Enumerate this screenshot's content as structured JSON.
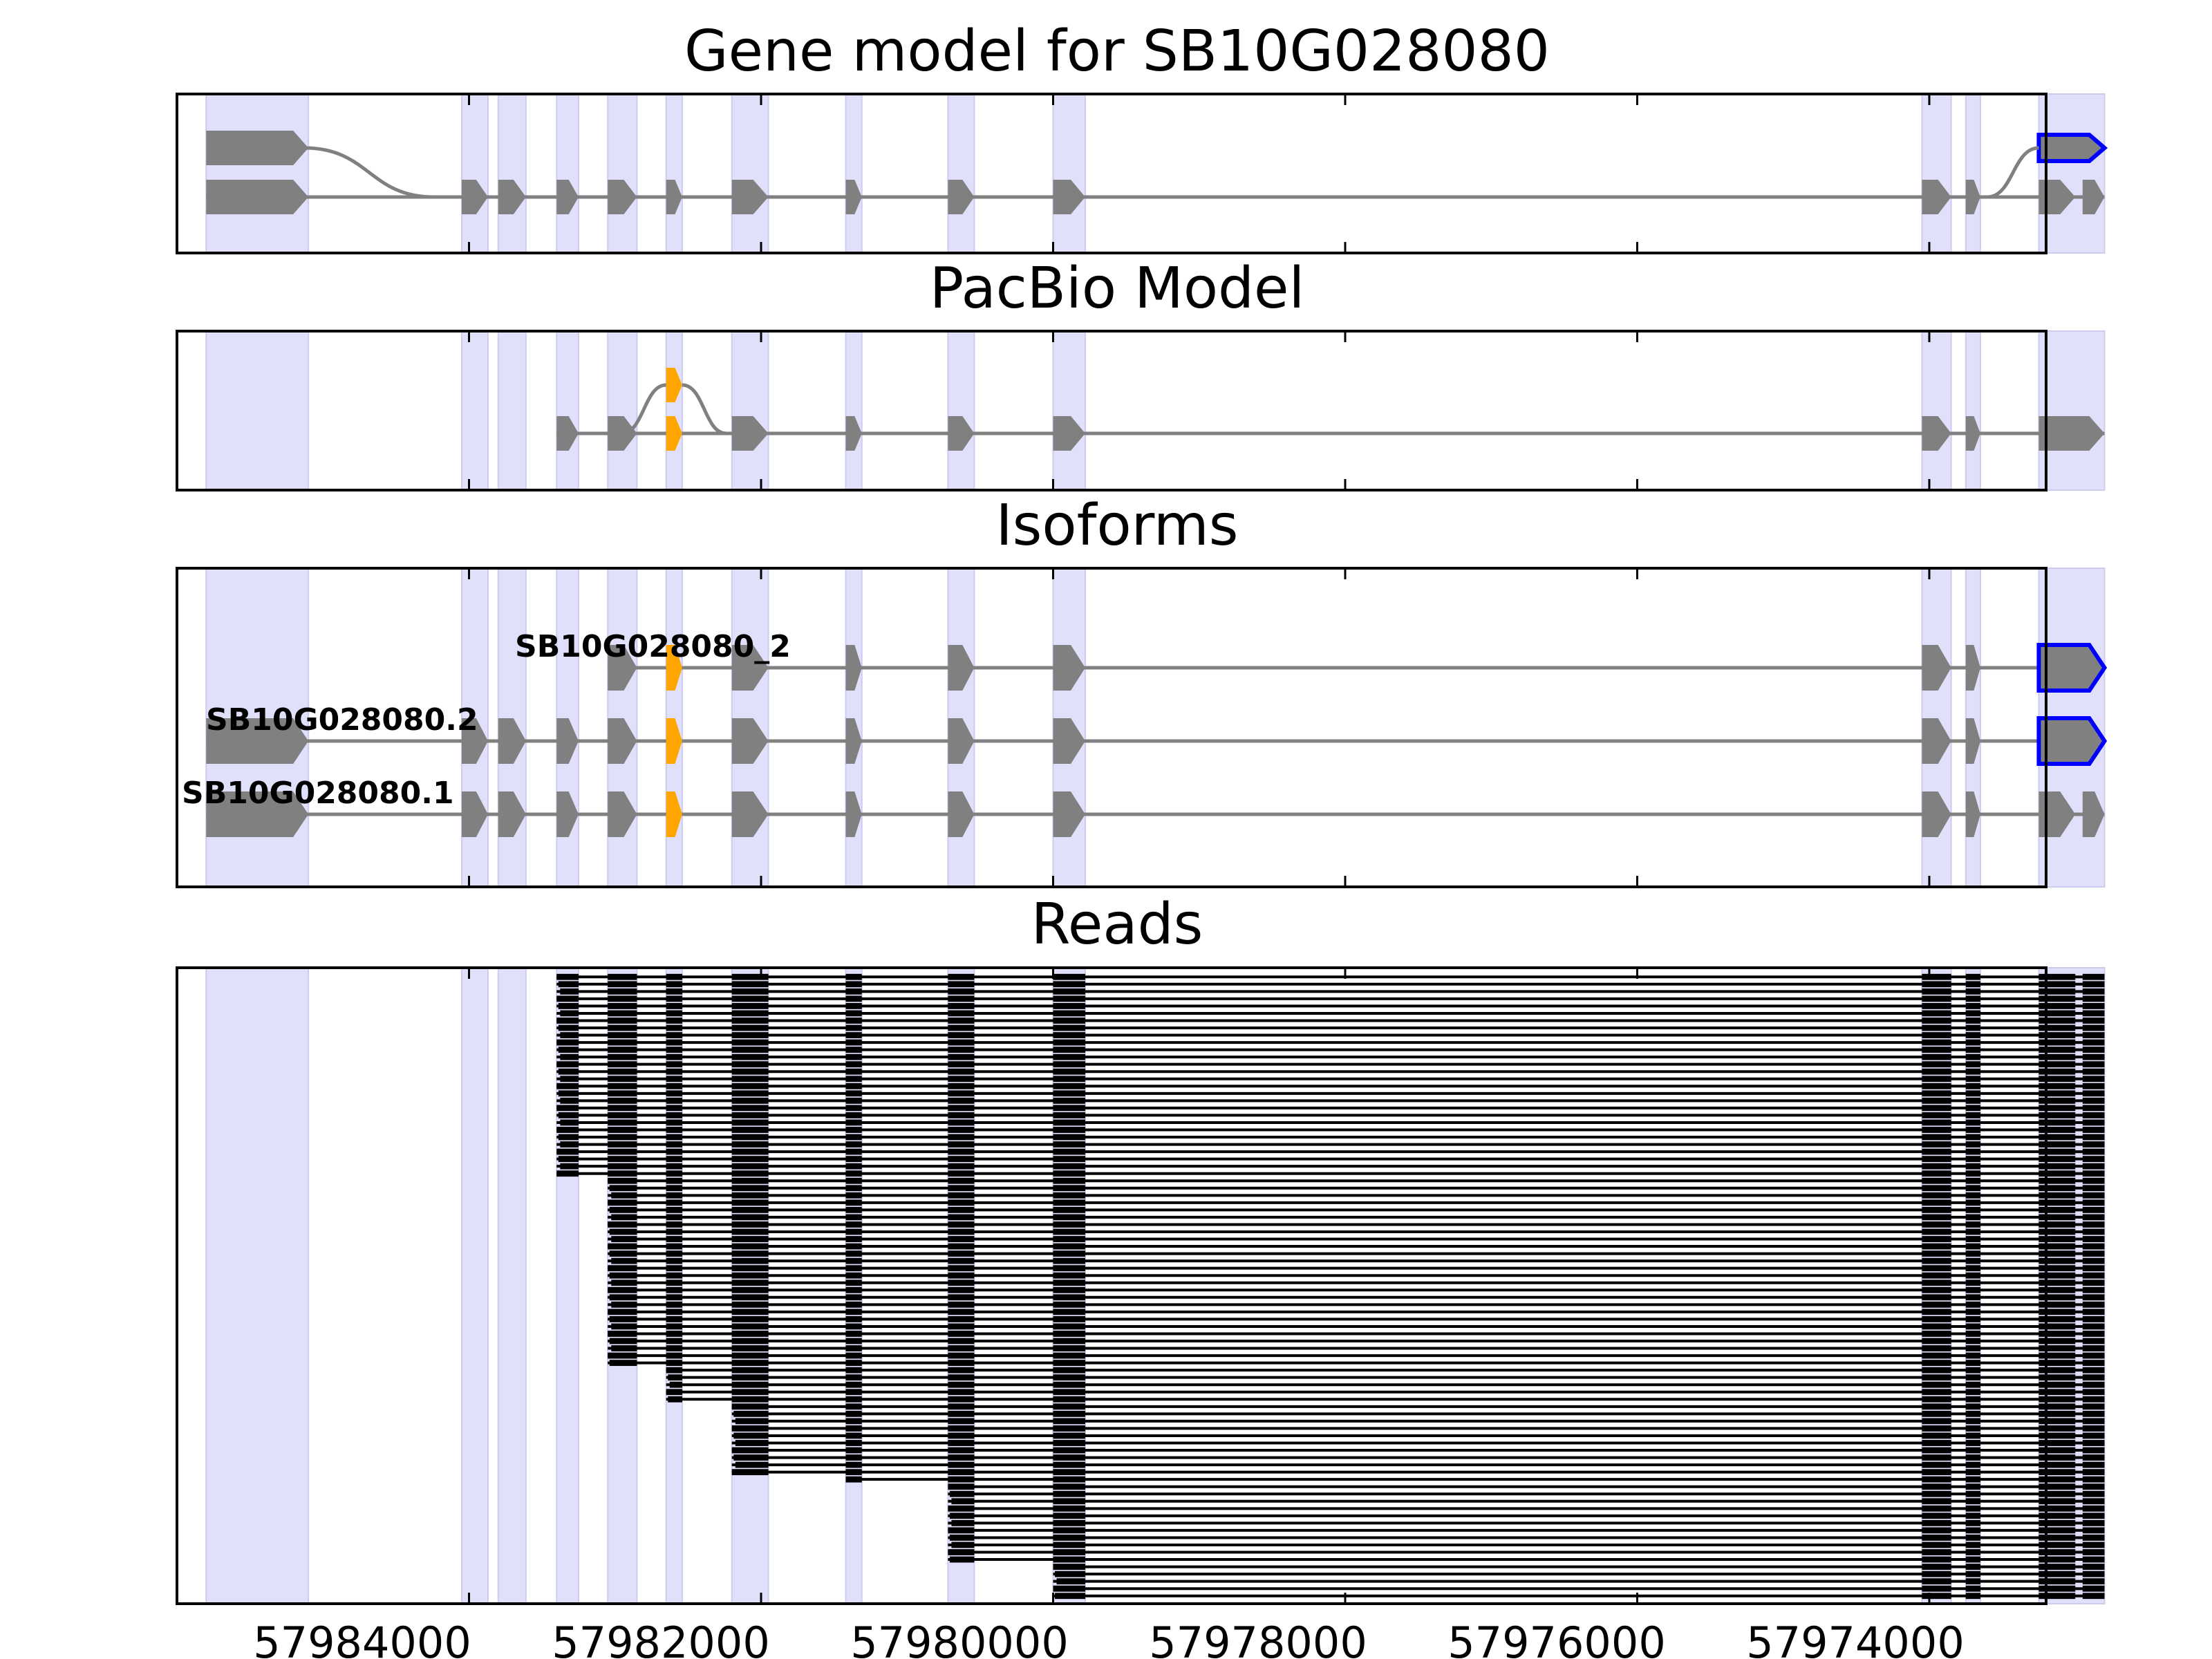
{
  "chart_data": {
    "type": "gene-structure",
    "xlim": [
      57986000,
      57973200
    ],
    "x_ticks": [
      57984000,
      57982000,
      57980000,
      57978000,
      57976000,
      57974000
    ],
    "x_tick_labels": [
      "57984000",
      "57982000",
      "57980000",
      "57978000",
      "57976000",
      "57974000"
    ],
    "strand": "-",
    "colors": {
      "exon": "#808080",
      "intron": "#808080",
      "highlight_region": "#e0e0fa",
      "alt_exon": "#ffa500",
      "alt_utr_outline": "#0000ff",
      "read": "#000000"
    },
    "highlight_regions": [
      [
        57985800,
        57985100
      ],
      [
        57984050,
        57983870
      ],
      [
        57983800,
        57983610
      ],
      [
        57983400,
        57983250
      ],
      [
        57983050,
        57982850
      ],
      [
        57982650,
        57982540
      ],
      [
        57982200,
        57981950
      ],
      [
        57981420,
        57981310
      ],
      [
        57980720,
        57980540
      ],
      [
        57980000,
        57979780
      ],
      [
        57974050,
        57973850
      ],
      [
        57973750,
        57973650
      ],
      [
        57973250,
        57972800
      ]
    ],
    "exons": [
      [
        57985800,
        57985100
      ],
      [
        57984050,
        57983870
      ],
      [
        57983800,
        57983610
      ],
      [
        57983400,
        57983250
      ],
      [
        57983050,
        57982850
      ],
      [
        57982650,
        57982540
      ],
      [
        57982200,
        57981950
      ],
      [
        57981420,
        57981310
      ],
      [
        57980720,
        57980540
      ],
      [
        57980000,
        57979780
      ],
      [
        57974050,
        57973850
      ],
      [
        57973750,
        57973650
      ],
      [
        57973250,
        57973000
      ],
      [
        57972950,
        57972800
      ]
    ],
    "panels": [
      {
        "title": "Gene model for SB10G028080",
        "tracks": [
          {
            "exons": [
              [
                57985800,
                57985100
              ],
              [
                57984050,
                57983870
              ],
              [
                57983800,
                57983610
              ],
              [
                57983400,
                57983250
              ],
              [
                57983050,
                57982850
              ],
              [
                57982650,
                57982540
              ],
              [
                57982200,
                57981950
              ],
              [
                57981420,
                57981310
              ],
              [
                57980720,
                57980540
              ],
              [
                57980000,
                57979780
              ],
              [
                57974050,
                57973850
              ],
              [
                57973750,
                57973650
              ],
              [
                57973250,
                57973000
              ],
              [
                57972950,
                57972800
              ]
            ]
          },
          {
            "exons": [
              [
                57985800,
                57985100
              ],
              [
                57973250,
                57972800
              ]
            ],
            "alt_last": true
          }
        ]
      },
      {
        "title": "PacBio Model",
        "tracks": [
          {
            "exons": [
              [
                57983400,
                57983250
              ],
              [
                57983050,
                57982850
              ],
              [
                57982650,
                57982540
              ],
              [
                57982200,
                57981950
              ],
              [
                57981420,
                57981310
              ],
              [
                57980720,
                57980540
              ],
              [
                57980000,
                57979780
              ],
              [
                57974050,
                57973850
              ],
              [
                57973750,
                57973650
              ],
              [
                57973250,
                57972800
              ]
            ],
            "alt_exon": [
              57982650,
              57982540
            ]
          },
          {
            "exons": [
              [
                57982650,
                57982540
              ]
            ],
            "alt_exon": [
              57982650,
              57982540
            ]
          }
        ]
      },
      {
        "title": "Isoforms",
        "isoforms": [
          {
            "label": "SB10G028080_2",
            "exons": [
              [
                57983050,
                57982850
              ],
              [
                57982650,
                57982540
              ],
              [
                57982200,
                57981950
              ],
              [
                57981420,
                57981310
              ],
              [
                57980720,
                57980540
              ],
              [
                57980000,
                57979780
              ],
              [
                57974050,
                57973850
              ],
              [
                57973750,
                57973650
              ],
              [
                57973250,
                57972800
              ]
            ],
            "alt_exon": [
              57982650,
              57982540
            ],
            "outlined_last": true
          },
          {
            "label": "SB10G028080.2",
            "exons": [
              [
                57985800,
                57985100
              ],
              [
                57984050,
                57983870
              ],
              [
                57983800,
                57983610
              ],
              [
                57983400,
                57983250
              ],
              [
                57983050,
                57982850
              ],
              [
                57982650,
                57982540
              ],
              [
                57982200,
                57981950
              ],
              [
                57981420,
                57981310
              ],
              [
                57980720,
                57980540
              ],
              [
                57980000,
                57979780
              ],
              [
                57974050,
                57973850
              ],
              [
                57973750,
                57973650
              ],
              [
                57973250,
                57972800
              ]
            ],
            "alt_exon": [
              57982650,
              57982540
            ],
            "outlined_last": true
          },
          {
            "label": "SB10G028080.1",
            "exons": [
              [
                57985800,
                57985100
              ],
              [
                57984050,
                57983870
              ],
              [
                57983800,
                57983610
              ],
              [
                57983400,
                57983250
              ],
              [
                57983050,
                57982850
              ],
              [
                57982650,
                57982540
              ],
              [
                57982200,
                57981950
              ],
              [
                57981420,
                57981310
              ],
              [
                57980720,
                57980540
              ],
              [
                57980000,
                57979780
              ],
              [
                57974050,
                57973850
              ],
              [
                57973750,
                57973650
              ],
              [
                57973250,
                57973000
              ],
              [
                57972950,
                57972800
              ]
            ],
            "alt_exon": [
              57982650,
              57982540
            ]
          }
        ]
      },
      {
        "title": "Reads",
        "read_count": 86,
        "read_start_groups": [
          {
            "start": 57983400,
            "count": 28
          },
          {
            "start": 57983050,
            "count": 26
          },
          {
            "start": 57982650,
            "count": 5
          },
          {
            "start": 57982200,
            "count": 10
          },
          {
            "start": 57981420,
            "count": 1
          },
          {
            "start": 57980720,
            "count": 11
          },
          {
            "start": 57980000,
            "count": 5
          }
        ],
        "read_end": 57972800
      }
    ]
  }
}
